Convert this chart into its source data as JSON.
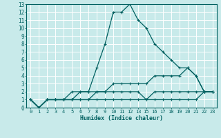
{
  "xlabel": "Humidex (Indice chaleur)",
  "bg_color": "#c8eaea",
  "grid_color": "#ffffff",
  "line_color": "#006060",
  "xlim": [
    -0.5,
    23.5
  ],
  "ylim": [
    0,
    13
  ],
  "xtick_positions": [
    0,
    1,
    2,
    3,
    4,
    5,
    6,
    7,
    8,
    9,
    10,
    11,
    12,
    13,
    15,
    16,
    17,
    18,
    19,
    20,
    21,
    22,
    23
  ],
  "xtick_labels": [
    "0",
    "1",
    "2",
    "3",
    "4",
    "5",
    "6",
    "7",
    "8",
    "9",
    "10",
    "11",
    "12",
    "13",
    "15",
    "16",
    "17",
    "18",
    "19",
    "20",
    "21",
    "22",
    "23"
  ],
  "yticks": [
    0,
    1,
    2,
    3,
    4,
    5,
    6,
    7,
    8,
    9,
    10,
    11,
    12,
    13
  ],
  "series1_x": [
    0,
    1,
    2,
    3,
    4,
    5,
    6,
    7,
    8,
    9,
    10,
    11,
    12,
    13,
    15,
    16,
    17,
    18,
    19,
    20,
    21,
    22,
    23
  ],
  "series1_y": [
    1,
    0,
    1,
    1,
    1,
    2,
    2,
    2,
    5,
    8,
    12,
    12,
    13,
    11,
    10,
    8,
    7,
    6,
    5,
    5,
    4,
    2,
    2
  ],
  "series2_x": [
    0,
    1,
    2,
    3,
    4,
    5,
    6,
    7,
    8,
    9,
    10,
    11,
    12,
    13,
    15,
    16,
    17,
    18,
    19,
    20,
    21,
    22,
    23
  ],
  "series2_y": [
    1,
    0,
    1,
    1,
    1,
    1,
    2,
    2,
    2,
    2,
    3,
    3,
    3,
    3,
    3,
    4,
    4,
    4,
    4,
    5,
    4,
    2,
    2
  ],
  "series3_x": [
    0,
    1,
    2,
    3,
    4,
    5,
    6,
    7,
    8,
    9,
    10,
    11,
    12,
    13,
    15,
    16,
    17,
    18,
    19,
    20,
    21,
    22,
    23
  ],
  "series3_y": [
    1,
    0,
    1,
    1,
    1,
    1,
    1,
    1,
    2,
    2,
    2,
    2,
    2,
    2,
    1,
    2,
    2,
    2,
    2,
    2,
    2,
    2,
    2
  ],
  "series4_x": [
    0,
    1,
    2,
    3,
    4,
    5,
    6,
    7,
    8,
    9,
    10,
    11,
    12,
    13,
    15,
    16,
    17,
    18,
    19,
    20,
    21,
    22,
    23
  ],
  "series4_y": [
    1,
    0,
    1,
    1,
    1,
    1,
    1,
    1,
    1,
    1,
    1,
    1,
    1,
    1,
    1,
    1,
    1,
    1,
    1,
    1,
    1,
    2,
    2
  ]
}
